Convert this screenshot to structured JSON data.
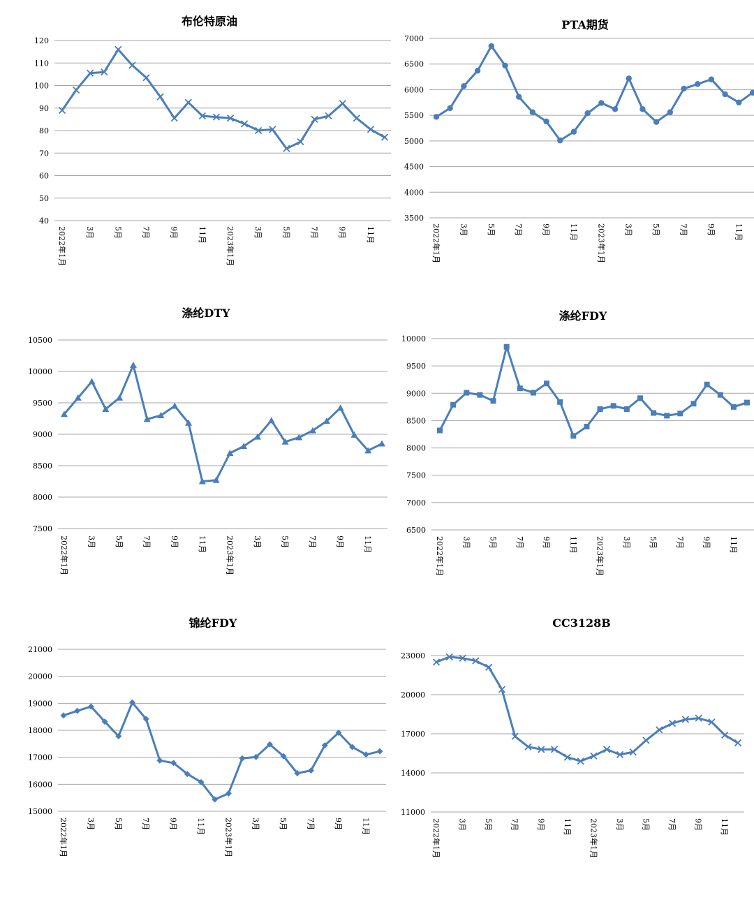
{
  "series_color": "#4a7ebb",
  "x_labels": [
    "2022年1月",
    "",
    "3月",
    "",
    "5月",
    "",
    "7月",
    "",
    "9月",
    "",
    "11月",
    "",
    "2023年1月",
    "",
    "3月",
    "",
    "5月",
    "",
    "7月",
    "",
    "9月",
    "",
    "11月",
    ""
  ],
  "chart_data": [
    {
      "type": "line",
      "marker": "x-cross",
      "title": "布伦特原油",
      "ylim": [
        40,
        120
      ],
      "yticks": [
        40,
        50,
        60,
        70,
        80,
        90,
        100,
        110,
        120
      ],
      "grid": true,
      "series": [
        {
          "values": [
            89,
            98,
            105.5,
            106,
            116,
            109,
            103.5,
            95,
            85.5,
            92.5,
            86.5,
            86,
            85.5,
            83,
            80,
            80.5,
            72,
            75,
            85,
            86.5,
            92,
            85.5,
            80.5,
            77
          ]
        }
      ]
    },
    {
      "type": "line",
      "marker": "circle",
      "title": "PTA期货",
      "ylim": [
        3500,
        7000
      ],
      "yticks": [
        3500,
        4000,
        4500,
        5000,
        5500,
        6000,
        6500,
        7000
      ],
      "grid": true,
      "series": [
        {
          "values": [
            5470,
            5640,
            6070,
            6370,
            6850,
            6470,
            5860,
            5560,
            5380,
            5010,
            5180,
            5540,
            5740,
            5620,
            6220,
            5620,
            5370,
            5560,
            6020,
            6110,
            6200,
            5910,
            5750,
            5940
          ]
        }
      ]
    },
    {
      "type": "line",
      "marker": "triangle",
      "title": "涤纶DTY",
      "ylim": [
        7500,
        10500
      ],
      "yticks": [
        7500,
        8000,
        8500,
        9000,
        9500,
        10000,
        10500
      ],
      "grid": true,
      "series": [
        {
          "values": [
            9320,
            9580,
            9840,
            9400,
            9580,
            10100,
            9240,
            9300,
            9450,
            9180,
            8250,
            8270,
            8700,
            8810,
            8960,
            9220,
            8880,
            8950,
            9060,
            9210,
            9420,
            8990,
            8740,
            8850
          ]
        }
      ]
    },
    {
      "type": "line",
      "marker": "square",
      "title": "涤纶FDY",
      "ylim": [
        6500,
        10000
      ],
      "yticks": [
        6500,
        7000,
        7500,
        8000,
        8500,
        9000,
        9500,
        10000
      ],
      "grid": true,
      "series": [
        {
          "values": [
            8320,
            8790,
            9010,
            8970,
            8860,
            9850,
            9090,
            9010,
            9180,
            8840,
            8220,
            8390,
            8710,
            8770,
            8710,
            8910,
            8640,
            8590,
            8630,
            8810,
            9160,
            8970,
            8750,
            8830
          ]
        }
      ]
    },
    {
      "type": "line",
      "marker": "diamond",
      "title": "锦纶FDY",
      "ylim": [
        15000,
        21000
      ],
      "yticks": [
        15000,
        16000,
        17000,
        18000,
        19000,
        20000,
        21000
      ],
      "grid": true,
      "series": [
        {
          "values": [
            18550,
            18720,
            18880,
            18320,
            17780,
            19030,
            18420,
            16880,
            16790,
            16380,
            16080,
            15440,
            15660,
            16960,
            17010,
            17480,
            17040,
            16410,
            16510,
            17440,
            17910,
            17380,
            17100,
            17220
          ]
        }
      ]
    },
    {
      "type": "line",
      "marker": "x-cross",
      "title": "CC3128B",
      "ylim": [
        11000,
        23000
      ],
      "yticks": [
        11000,
        14000,
        17000,
        20000,
        23000
      ],
      "grid": true,
      "series": [
        {
          "values": [
            22500,
            22900,
            22800,
            22600,
            22100,
            20400,
            16800,
            16000,
            15800,
            15800,
            15200,
            14900,
            15300,
            15800,
            15400,
            15600,
            16500,
            17300,
            17800,
            18100,
            18200,
            17900,
            16900,
            16300
          ]
        }
      ]
    }
  ]
}
